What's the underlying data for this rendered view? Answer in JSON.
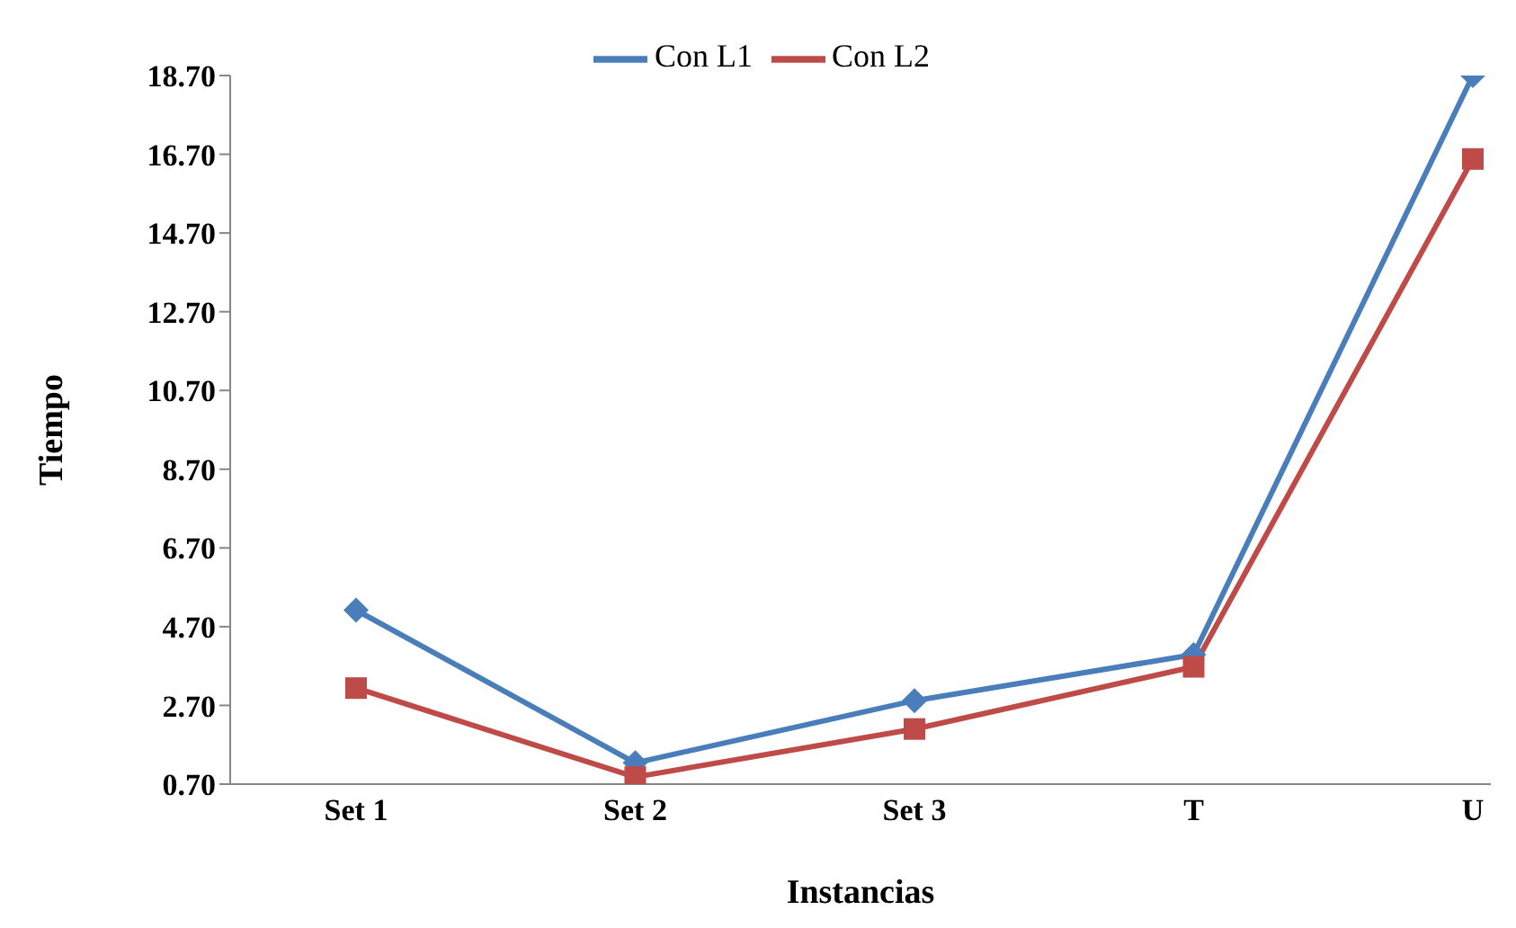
{
  "chart_data": {
    "type": "line",
    "xlabel": "Instancias",
    "ylabel": "Tiempo",
    "categories": [
      "Set 1",
      "Set 2",
      "Set 3",
      "T",
      "U"
    ],
    "series": [
      {
        "name": "Con L1",
        "color": "#4a7ebb",
        "marker": "diamond",
        "values": [
          5.12,
          1.24,
          2.82,
          3.99,
          18.7
        ]
      },
      {
        "name": "Con L2",
        "color": "#be4b48",
        "marker": "square",
        "values": [
          3.14,
          0.88,
          2.1,
          3.68,
          16.58
        ]
      }
    ],
    "ylim": [
      0.7,
      18.7
    ],
    "yticks": [
      {
        "value": 0.7,
        "label": "0.70"
      },
      {
        "value": 2.7,
        "label": "2.70"
      },
      {
        "value": 4.7,
        "label": "4.70"
      },
      {
        "value": 6.7,
        "label": "6.70"
      },
      {
        "value": 8.7,
        "label": "8.70"
      },
      {
        "value": 10.7,
        "label": "10.70"
      },
      {
        "value": 12.7,
        "label": "12.70"
      },
      {
        "value": 14.7,
        "label": "14.70"
      },
      {
        "value": 16.7,
        "label": "16.70"
      },
      {
        "value": 18.7,
        "label": "18.70"
      }
    ],
    "grid": false,
    "legend": "top"
  }
}
